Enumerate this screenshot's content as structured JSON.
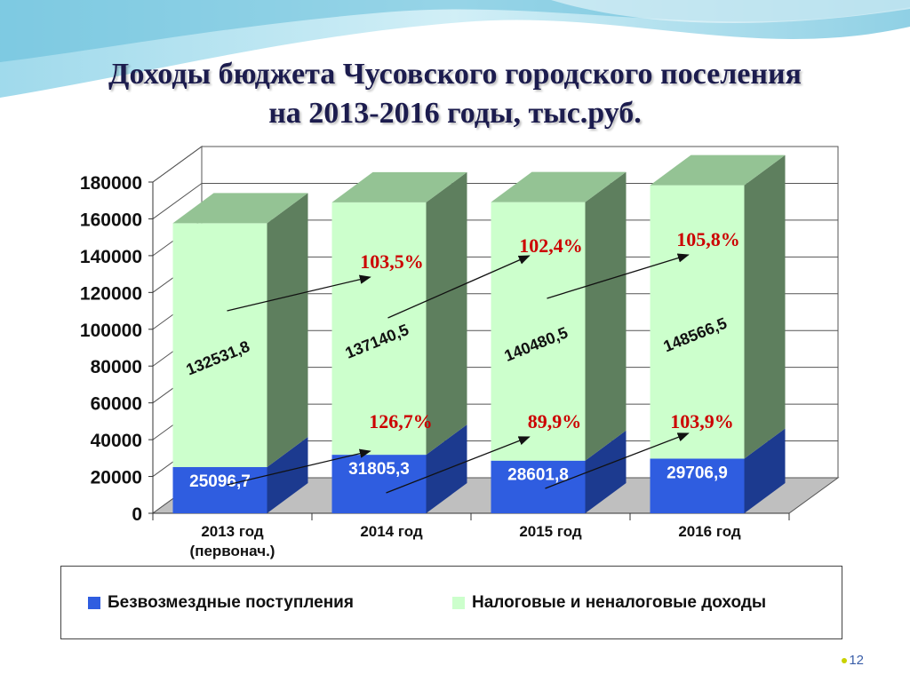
{
  "title": {
    "line1": "Доходы бюджета Чусовского городского поселения",
    "line2": "на 2013-2016 годы, тыс.руб."
  },
  "colors": {
    "series_blue": "#2f5de0",
    "series_green": "#ccffcc",
    "growth_labels": "#cc0000",
    "title": "#1c1c4e"
  },
  "chart_data": {
    "type": "bar",
    "stacked": true,
    "categories": [
      "2013 год (первонач.)",
      "2014 год",
      "2015 год",
      "2016 год"
    ],
    "category_lines": [
      [
        "2013 год",
        "(первонач.)"
      ],
      [
        "2014 год"
      ],
      [
        "2015 год"
      ],
      [
        "2016 год"
      ]
    ],
    "series": [
      {
        "name": "Безвозмездные поступления",
        "values": [
          25096.7,
          31805.3,
          28601.8,
          29706.9
        ],
        "labels": [
          "25096,7",
          "31805,3",
          "28601,8",
          "29706,9"
        ],
        "color": "#2f5de0"
      },
      {
        "name": "Налоговые и неналоговые доходы",
        "values": [
          132531.8,
          137140.5,
          140480.5,
          148566.5
        ],
        "labels": [
          "132531,8",
          "137140,5",
          "140480,5",
          "148566,5"
        ],
        "color": "#ccffcc"
      }
    ],
    "growth_annotations": {
      "tax": [
        "103,5%",
        "102,4%",
        "105,8%"
      ],
      "gratuitous": [
        "126,7%",
        "89,9%",
        "103,9%"
      ]
    },
    "ylim": [
      0,
      180000
    ],
    "yticks": [
      0,
      20000,
      40000,
      60000,
      80000,
      100000,
      120000,
      140000,
      160000,
      180000
    ],
    "grid": true,
    "legend_position": "bottom",
    "xlabel": "",
    "ylabel": ""
  },
  "legend": {
    "item1": "Безвозмездные поступления",
    "item2": "Налоговые и неналоговые доходы"
  },
  "page_number": "12"
}
